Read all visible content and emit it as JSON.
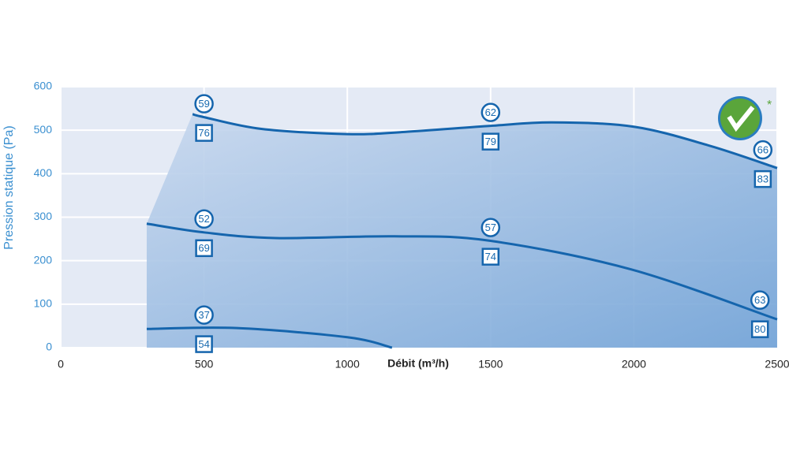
{
  "chart_data": {
    "type": "line",
    "x_label": "Débit (m³/h)",
    "y_label": "Pression statique (Pa)",
    "xlim": [
      0,
      2500
    ],
    "ylim": [
      0,
      600
    ],
    "xticks": [
      0,
      500,
      1000,
      1500,
      2000,
      2500
    ],
    "yticks": [
      0,
      100,
      200,
      300,
      400,
      500,
      600
    ],
    "grid": true,
    "area_color": "#4f8fcf",
    "series": [
      {
        "color": "#1565ad",
        "x": [
          460,
          500,
          700,
          1000,
          1200,
          1500,
          1715,
          2000,
          2266,
          2500
        ],
        "values": [
          537,
          530,
          503,
          491,
          496,
          510,
          518,
          508,
          464,
          413
        ],
        "markers": [
          {
            "x": 500,
            "circle": "59",
            "square": "76"
          },
          {
            "x": 1500,
            "circle": "62",
            "square": "79"
          },
          {
            "x": 2450,
            "circle": "66",
            "square": "83"
          }
        ]
      },
      {
        "color": "#1565ad",
        "x": [
          300,
          500,
          750,
          1165,
          1495,
          1990,
          2500
        ],
        "values": [
          285,
          265,
          252,
          256,
          246,
          180,
          65
        ],
        "markers": [
          {
            "x": 500,
            "circle": "52",
            "square": "69"
          },
          {
            "x": 1500,
            "circle": "57",
            "square": "74"
          },
          {
            "x": 2440,
            "circle": "63",
            "square": "80"
          }
        ]
      },
      {
        "color": "#1565ad",
        "x": [
          300,
          614,
          1000,
          1156
        ],
        "values": [
          43,
          45,
          24,
          0
        ],
        "markers": [
          {
            "x": 500,
            "circle": "37",
            "square": "54"
          }
        ]
      }
    ]
  }
}
